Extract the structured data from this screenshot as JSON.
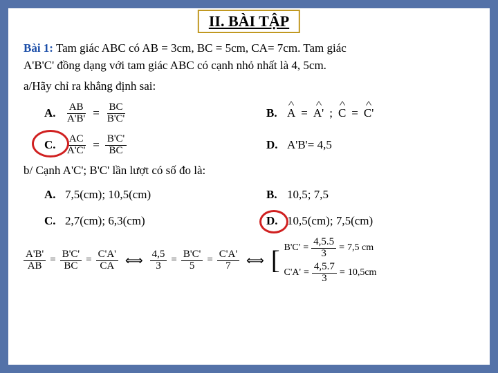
{
  "title": "II. BÀI TẬP",
  "problem": {
    "label": "Bài 1:",
    "text1": "Tam giác ABC có AB = 3cm, BC = 5cm, CA= 7cm. Tam giác",
    "text2": "A'B'C' đồng dạng với tam giác ABC có cạnh nhỏ nhất là 4, 5cm."
  },
  "partA": {
    "prompt": "a/Hãy chỉ ra khẳng định sai:",
    "options": {
      "A": {
        "n1": "AB",
        "d1": "A'B'",
        "n2": "BC",
        "d2": "B'C'"
      },
      "B": {
        "lhs1": "A",
        "rhs1": "A'",
        "lhs2": "C",
        "rhs2": "C'"
      },
      "C": {
        "n1": "AC",
        "d1": "A'C'",
        "n2": "B'C'",
        "d2": "BC"
      },
      "D": "A'B'= 4,5"
    }
  },
  "partB": {
    "prompt": "b/ Cạnh A'C'; B'C'  lần lượt có số đo là:",
    "options": {
      "A": "7,5(cm); 10,5(cm)",
      "B": "10,5; 7,5",
      "C": "2,7(cm); 6,3(cm)",
      "D": "10,5(cm); 7,5(cm)"
    }
  },
  "solution": {
    "ratios": [
      {
        "n": "A'B'",
        "d": "AB"
      },
      {
        "n": "B'C'",
        "d": "BC"
      },
      {
        "n": "C'A'",
        "d": "CA"
      },
      {
        "n": "4,5",
        "d": "3"
      },
      {
        "n": "B'C'",
        "d": "5"
      },
      {
        "n": "C'A'",
        "d": "7"
      }
    ],
    "result1": {
      "lhs": "B'C'",
      "n": "4,5.5",
      "d": "3",
      "rhs": "7,5 cm"
    },
    "result2": {
      "lhs": "C'A'",
      "n": "4,5.7",
      "d": "3",
      "rhs": "10,5cm"
    }
  },
  "labels": {
    "A": "A.",
    "B": "B.",
    "C": "C.",
    "D": "D."
  },
  "eq": "=",
  "semi": ";",
  "iff": "⟺"
}
